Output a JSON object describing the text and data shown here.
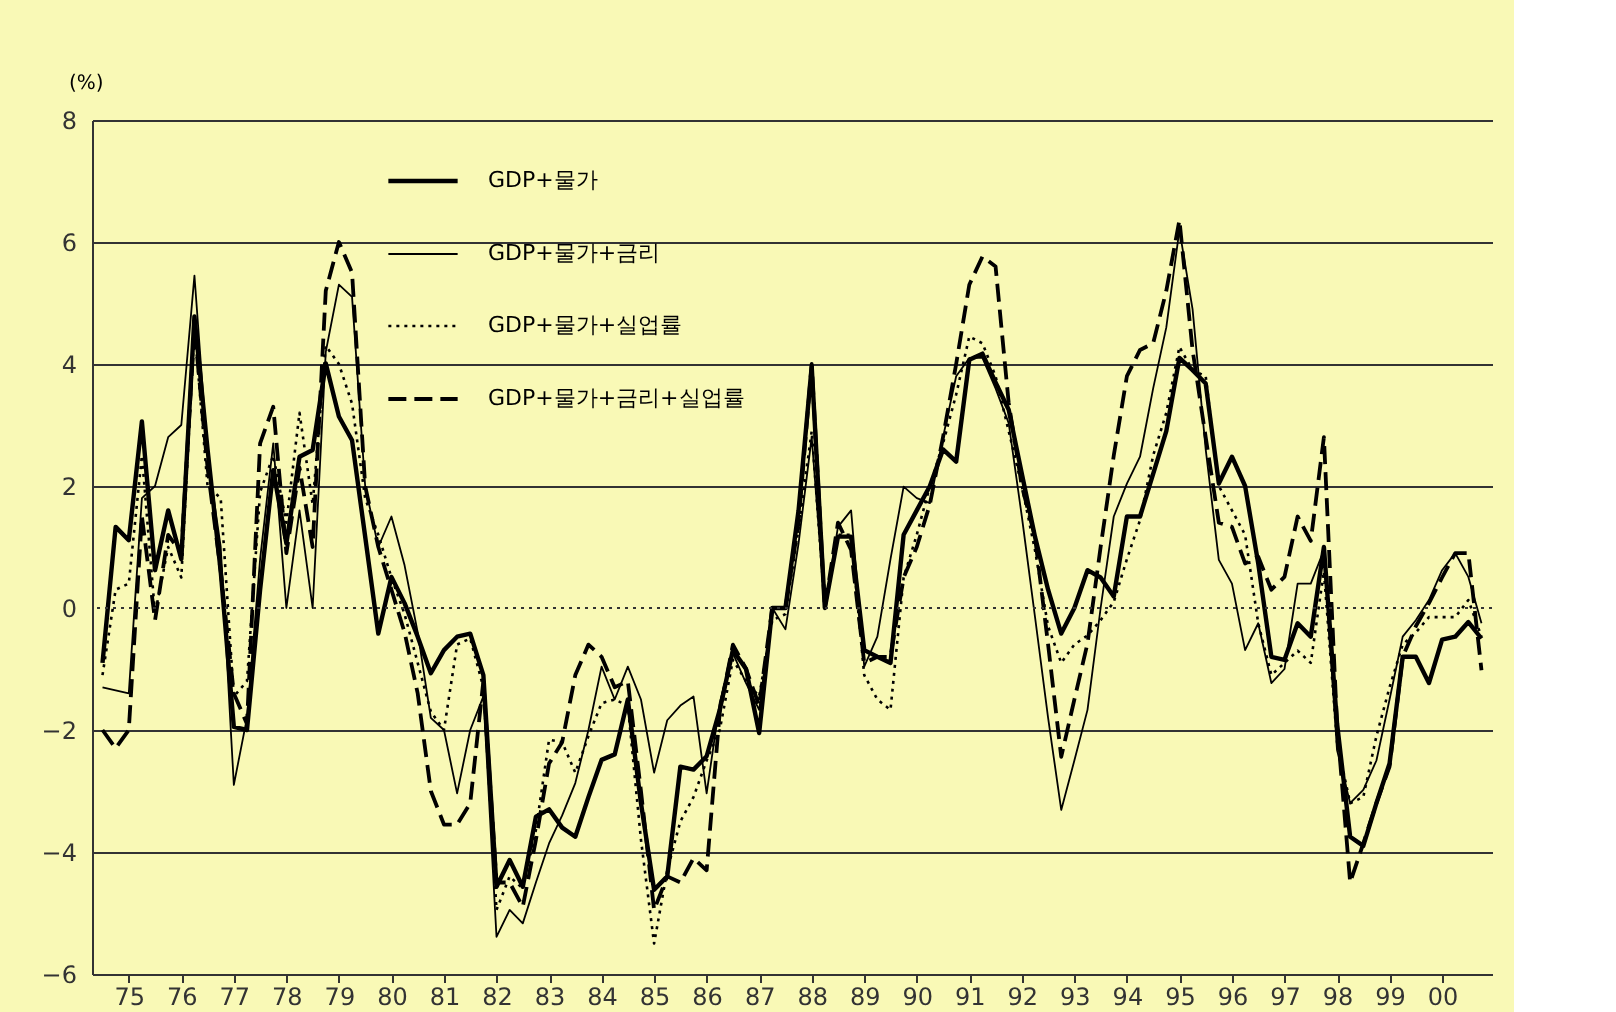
{
  "chart_data": {
    "type": "line",
    "ylabel": "(%)",
    "categories": [
      null,
      null,
      "75",
      null,
      null,
      null,
      "76",
      null,
      null,
      null,
      "77",
      null,
      null,
      null,
      "78",
      null,
      null,
      null,
      "79",
      null,
      null,
      null,
      "80",
      null,
      null,
      null,
      "81",
      null,
      null,
      null,
      "82",
      null,
      null,
      null,
      "83",
      null,
      null,
      null,
      "84",
      null,
      null,
      null,
      "85",
      null,
      null,
      null,
      "86",
      null,
      null,
      null,
      "87",
      null,
      null,
      null,
      "88",
      null,
      null,
      null,
      "89",
      null,
      null,
      null,
      "90",
      null,
      null,
      null,
      "91",
      null,
      null,
      null,
      "92",
      null,
      null,
      null,
      "93",
      null,
      null,
      null,
      "94",
      null,
      null,
      null,
      "95",
      null,
      null,
      null,
      "96",
      null,
      null,
      null,
      "97",
      null,
      null,
      null,
      "98",
      null,
      null,
      null,
      "99",
      null,
      null,
      null,
      "00",
      null,
      null,
      null
    ],
    "series": [
      {
        "name": "GDP+물가",
        "color": "#000000",
        "line_style": "solid",
        "values": [
          -0.9,
          1.33,
          1.11,
          3.06,
          0.62,
          1.6,
          0.8,
          4.78,
          2.6,
          0.6,
          -1.95,
          -2.0,
          0.3,
          2.26,
          1.06,
          2.48,
          2.59,
          4.01,
          3.14,
          2.75,
          1.17,
          -0.42,
          0.51,
          0.08,
          -0.47,
          -1.07,
          -0.69,
          -0.47,
          -0.42,
          -1.1,
          -4.57,
          -4.13,
          -4.57,
          -3.42,
          -3.3,
          -3.6,
          -3.75,
          -3.1,
          -2.49,
          -2.4,
          -1.5,
          -3.2,
          -4.62,
          -4.4,
          -2.6,
          -2.65,
          -2.43,
          -1.67,
          -0.69,
          -1.0,
          -2.05,
          0.0,
          0.0,
          1.6,
          3.96,
          0.0,
          1.17,
          1.17,
          -0.69,
          -0.8,
          -0.9,
          1.2,
          1.6,
          2.0,
          2.6,
          2.4,
          4.07,
          4.17,
          3.7,
          3.25,
          2.2,
          1.17,
          0.3,
          -0.42,
          0.0,
          0.62,
          0.5,
          0.19,
          1.5,
          1.5,
          2.2,
          2.9,
          4.1,
          3.9,
          3.68,
          2.04,
          2.48,
          2.0,
          0.73,
          -0.8,
          -0.85,
          -0.25,
          -0.47,
          1.0,
          -1.89,
          -3.75,
          -3.9,
          -3.2,
          -2.55,
          -0.8,
          -0.8,
          -1.23,
          -0.52,
          -0.47,
          -0.23,
          -0.5
        ]
      },
      {
        "name": "GDP+물가+금리",
        "color": "#000000",
        "line_style": "solid",
        "values": [
          -1.3,
          -1.35,
          -1.4,
          1.8,
          2.0,
          2.8,
          3.0,
          5.45,
          2.5,
          1.0,
          -2.9,
          -1.8,
          0.8,
          2.7,
          0.0,
          1.6,
          0.0,
          4.2,
          5.3,
          5.1,
          2.0,
          1.0,
          1.5,
          0.7,
          -0.4,
          -1.8,
          -2.0,
          -3.04,
          -2.0,
          -1.45,
          -5.39,
          -4.95,
          -5.17,
          -4.5,
          -3.86,
          -3.4,
          -2.87,
          -2.0,
          -0.96,
          -1.5,
          -0.96,
          -1.5,
          -2.7,
          -1.84,
          -1.6,
          -1.45,
          -3.04,
          -1.55,
          -0.74,
          -1.23,
          -1.67,
          0.0,
          -0.35,
          1.06,
          2.8,
          0.0,
          1.33,
          1.6,
          -0.96,
          -0.47,
          0.8,
          1.99,
          1.8,
          1.72,
          2.8,
          3.8,
          4.1,
          4.1,
          3.6,
          3.03,
          1.5,
          -0.14,
          -1.8,
          -3.31,
          -2.5,
          -1.67,
          0.0,
          1.5,
          2.04,
          2.48,
          3.6,
          4.6,
          6.2,
          4.9,
          2.6,
          0.79,
          0.4,
          -0.69,
          -0.25,
          -1.23,
          -1.0,
          0.4,
          0.4,
          0.95,
          -2.33,
          -3.2,
          -2.98,
          -2.5,
          -1.5,
          -0.47,
          -0.2,
          0.13,
          0.62,
          0.9,
          0.51,
          -0.25
        ]
      },
      {
        "name": "GDP+물가+실업률",
        "color": "#000000",
        "line_style": "dotted",
        "values": [
          -1.1,
          0.3,
          0.4,
          2.5,
          -0.1,
          1.0,
          0.5,
          4.6,
          2.0,
          1.8,
          -1.45,
          -1.2,
          1.9,
          2.5,
          1.4,
          3.2,
          1.7,
          4.3,
          4.0,
          3.35,
          1.8,
          1.2,
          0.5,
          -0.1,
          -0.9,
          -1.7,
          -2.0,
          -0.6,
          -0.5,
          -1.3,
          -4.95,
          -4.4,
          -4.6,
          -3.64,
          -2.16,
          -2.2,
          -2.7,
          -2.1,
          -1.56,
          -1.5,
          -1.6,
          -3.8,
          -5.5,
          -4.3,
          -3.5,
          -3.1,
          -2.5,
          -2.0,
          -0.85,
          -1.2,
          -1.45,
          -0.2,
          -0.1,
          1.3,
          2.9,
          0.0,
          1.2,
          1.2,
          -1.1,
          -1.5,
          -1.67,
          0.5,
          1.2,
          2.0,
          2.7,
          3.5,
          4.45,
          4.34,
          3.8,
          2.9,
          2.0,
          0.95,
          -0.3,
          -0.9,
          -0.6,
          -0.45,
          -0.2,
          0.1,
          0.8,
          1.44,
          2.5,
          3.2,
          4.28,
          3.9,
          3.8,
          2.0,
          1.6,
          1.2,
          -0.25,
          -1.1,
          -0.9,
          -0.7,
          -0.9,
          0.6,
          -2.2,
          -3.2,
          -3.1,
          -2.1,
          -1.3,
          -0.6,
          -0.4,
          -0.15,
          -0.15,
          -0.15,
          0.13,
          -0.47
        ]
      },
      {
        "name": "GDP+물가+금리+실업률",
        "color": "#000000",
        "line_style": "dashed",
        "values": [
          -2.0,
          -2.3,
          -2.0,
          1.5,
          -0.2,
          1.2,
          0.9,
          4.6,
          2.3,
          0.6,
          -1.4,
          -1.9,
          2.7,
          3.3,
          0.9,
          2.3,
          1.0,
          5.2,
          6.0,
          5.5,
          2.0,
          1.0,
          0.3,
          -0.4,
          -1.4,
          -3.0,
          -3.55,
          -3.55,
          -3.2,
          -1.2,
          -4.5,
          -4.5,
          -4.9,
          -3.8,
          -2.55,
          -2.2,
          -1.1,
          -0.6,
          -0.8,
          -1.3,
          -1.2,
          -3.0,
          -4.95,
          -4.4,
          -4.5,
          -4.1,
          -4.3,
          -1.7,
          -0.6,
          -1.0,
          -1.6,
          0.0,
          0.0,
          1.4,
          4.0,
          0.0,
          1.4,
          0.95,
          -0.9,
          -0.8,
          -0.8,
          0.5,
          1.0,
          1.7,
          2.8,
          4.0,
          5.3,
          5.76,
          5.6,
          3.36,
          2.0,
          1.17,
          -0.6,
          -2.44,
          -1.5,
          -0.58,
          1.0,
          2.5,
          3.8,
          4.23,
          4.34,
          5.2,
          6.36,
          4.23,
          2.8,
          1.4,
          1.33,
          0.73,
          0.84,
          0.3,
          0.51,
          1.5,
          1.1,
          2.8,
          -1.9,
          -4.5,
          -3.86,
          -3.2,
          -2.6,
          -0.8,
          -0.3,
          0.08,
          0.5,
          0.9,
          0.9,
          -1.02
        ]
      }
    ],
    "ylim": [
      -6,
      8
    ],
    "yticks": [
      {
        "value": -6,
        "label": "−6"
      },
      {
        "value": -4,
        "label": "−4"
      },
      {
        "value": -2,
        "label": "−2"
      },
      0,
      2,
      4,
      6,
      8
    ],
    "ref_lines": [
      {
        "axis": "y",
        "value": 0,
        "line_style": "dotted",
        "color": "#333333"
      }
    ],
    "grid": "y",
    "legend": "top left"
  }
}
